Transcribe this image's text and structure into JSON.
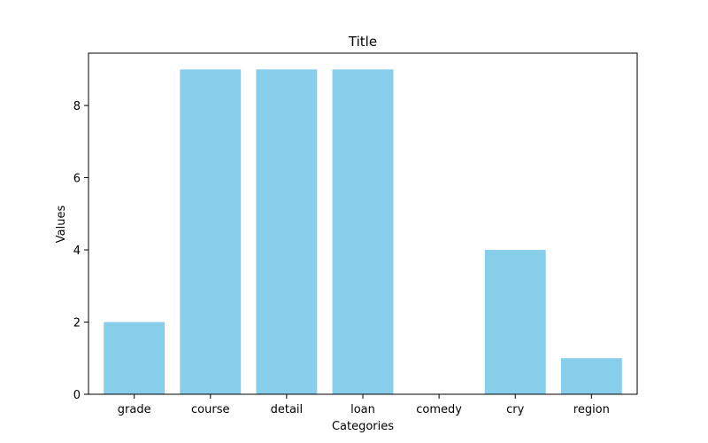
{
  "chart_data": {
    "type": "bar",
    "title": "Title",
    "xlabel": "Categories",
    "ylabel": "Values",
    "categories": [
      "grade",
      "course",
      "detail",
      "loan",
      "comedy",
      "cry",
      "region"
    ],
    "values": [
      2,
      9,
      9,
      9,
      0,
      4,
      1
    ],
    "ylim": [
      0,
      9.45
    ],
    "yticks": [
      0,
      2,
      4,
      6,
      8
    ],
    "grid": false,
    "bar_color": "#87CEEB"
  }
}
